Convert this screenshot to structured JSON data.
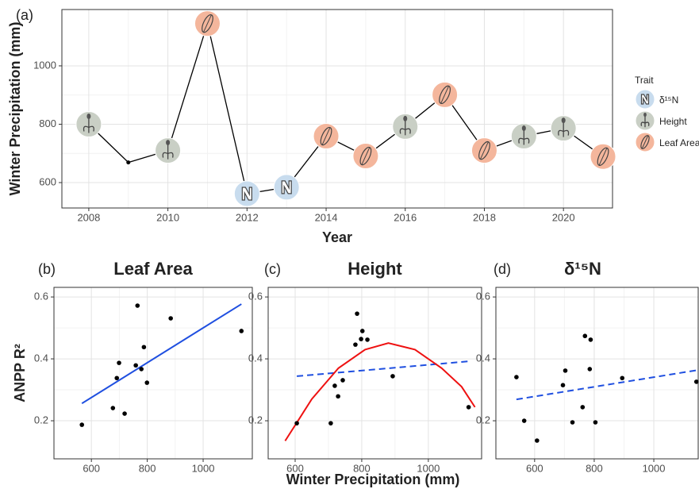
{
  "chart_data": [
    {
      "type": "line",
      "panel_label": "(a)",
      "x_label": "Year",
      "y_label": "Winter Precipitation (mm)",
      "x": [
        2008,
        2009,
        2010,
        2011,
        2012,
        2013,
        2014,
        2015,
        2016,
        2017,
        2018,
        2019,
        2020,
        2021
      ],
      "values": [
        800,
        669,
        710,
        1145,
        562,
        584,
        759,
        691,
        792,
        901,
        710,
        759,
        786,
        689
      ],
      "point_trait": [
        1,
        null,
        1,
        2,
        0,
        0,
        2,
        2,
        1,
        2,
        2,
        1,
        1,
        2
      ],
      "color": "#000000",
      "legend_title": "Trait",
      "traits": [
        {
          "name": "δ¹⁵N",
          "color": "#c8dcee"
        },
        {
          "name": "Height",
          "color": "#c9cfc5"
        },
        {
          "name": "Leaf Area",
          "color": "#f4b69c"
        }
      ],
      "xlim": [
        2007.32,
        2021.24
      ],
      "ylim": [
        513,
        1193
      ],
      "xticks": [
        2008,
        2010,
        2012,
        2014,
        2016,
        2018,
        2020
      ],
      "yticks": [
        600,
        800,
        1000
      ],
      "grid": true
    },
    {
      "type": "scatter",
      "panel_label": "(b)",
      "title": "Leaf Area",
      "y_label": "ANPP R²",
      "x_label": "Winter Precipitation (mm)",
      "x": [
        566,
        677,
        719,
        699,
        691,
        759,
        765,
        779,
        788,
        799,
        884,
        1137
      ],
      "values": [
        0.187,
        0.241,
        0.223,
        0.387,
        0.338,
        0.379,
        0.572,
        0.367,
        0.438,
        0.323,
        0.531,
        0.49
      ],
      "color": "#000000",
      "fits": [
        {
          "x": [
            566,
            1137
          ],
          "values": [
            0.256,
            0.577
          ],
          "color": "#1f4fe0",
          "dashed": false
        }
      ],
      "xlim": [
        466,
        1176
      ],
      "ylim": [
        0.077,
        0.631
      ],
      "xticks": [
        600,
        800,
        1000
      ],
      "yticks": [
        0.2,
        0.4,
        0.6
      ],
      "grid": true
    },
    {
      "type": "scatter",
      "panel_label": "(c)",
      "title": "Height",
      "x": [
        605,
        707,
        719,
        729,
        743,
        781,
        786,
        802,
        798,
        817,
        893,
        1121
      ],
      "values": [
        0.192,
        0.192,
        0.313,
        0.279,
        0.331,
        0.446,
        0.546,
        0.49,
        0.464,
        0.462,
        0.344,
        0.244
      ],
      "color": "#000000",
      "fits": [
        {
          "x": [
            605,
            1121
          ],
          "values": [
            0.344,
            0.392
          ],
          "color": "#1f4fe0",
          "dashed": true
        },
        {
          "x": [
            570,
            650,
            730,
            810,
            880,
            960,
            1040,
            1100,
            1140
          ],
          "values": [
            0.135,
            0.27,
            0.37,
            0.43,
            0.451,
            0.43,
            0.37,
            0.31,
            0.244
          ],
          "color": "#ee1111",
          "dashed": false
        }
      ],
      "xlim": [
        519,
        1160
      ],
      "ylim": [
        0.077,
        0.631
      ],
      "xticks": [
        600,
        800,
        1000
      ],
      "yticks": [
        0.2,
        0.4,
        0.6
      ],
      "grid": true
    },
    {
      "type": "scatter",
      "panel_label": "(d)",
      "title": "δ¹⁵N",
      "x": [
        539,
        565,
        608,
        695,
        703,
        727,
        761,
        769,
        785,
        788,
        804,
        894,
        1143
      ],
      "values": [
        0.341,
        0.2,
        0.136,
        0.315,
        0.362,
        0.195,
        0.244,
        0.474,
        0.367,
        0.462,
        0.195,
        0.338,
        0.326
      ],
      "color": "#000000",
      "fits": [
        {
          "x": [
            539,
            1149
          ],
          "values": [
            0.269,
            0.364
          ],
          "color": "#1f4fe0",
          "dashed": true
        }
      ],
      "xlim": [
        470,
        1149
      ],
      "ylim": [
        0.077,
        0.631
      ],
      "xticks": [
        600,
        800,
        1000
      ],
      "yticks": [
        0.2,
        0.4,
        0.6
      ],
      "grid": true
    }
  ]
}
